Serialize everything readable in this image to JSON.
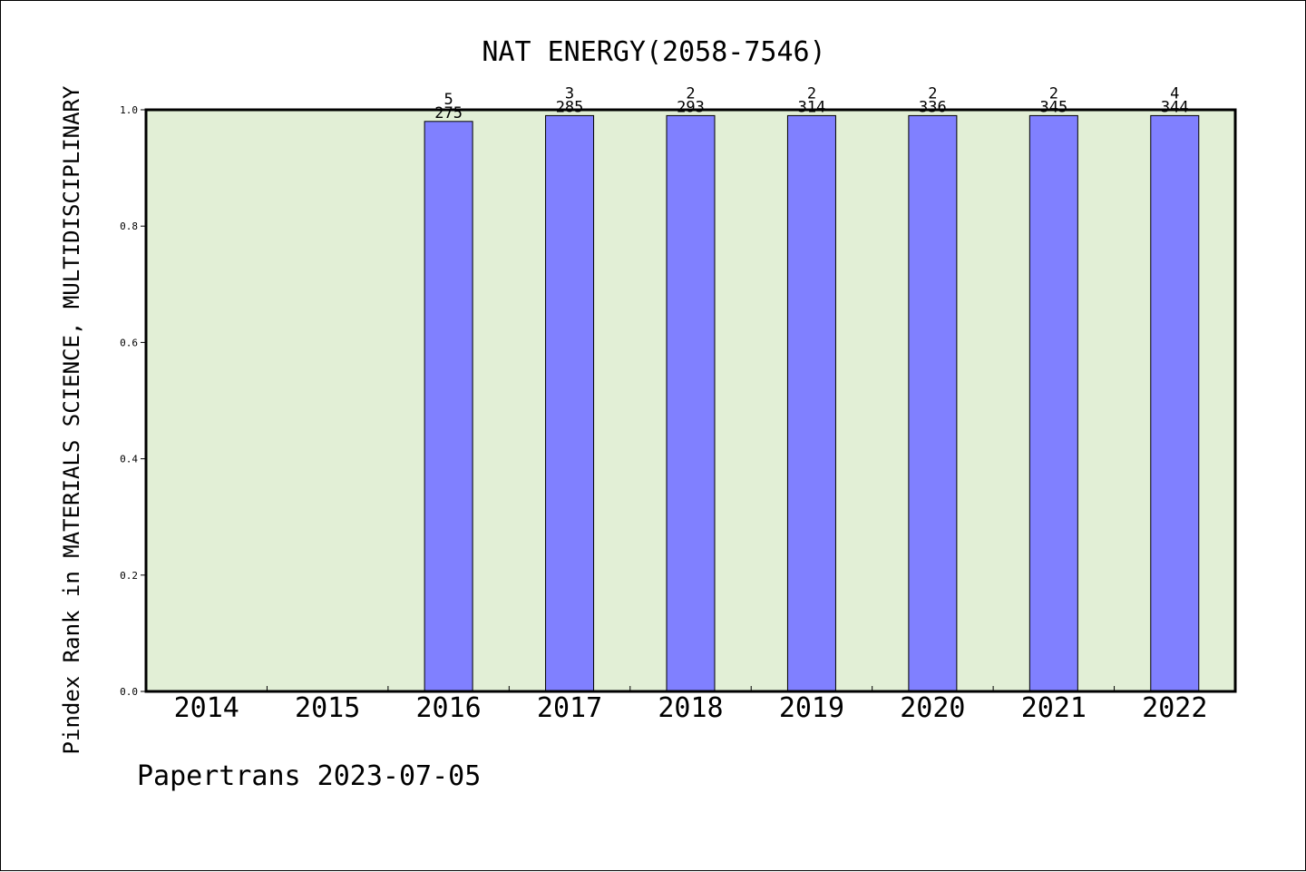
{
  "chart_data": {
    "type": "bar",
    "title": "NAT ENERGY(2058-7546)",
    "ylabel": "Pindex Rank in MATERIALS SCIENCE, MULTIDISCIPLINARY",
    "xlabel": "",
    "footer": "Papertrans 2023-07-05",
    "categories": [
      "2014",
      "2015",
      "2016",
      "2017",
      "2018",
      "2019",
      "2020",
      "2021",
      "2022"
    ],
    "values": [
      null,
      null,
      0.98,
      0.99,
      0.99,
      0.99,
      0.99,
      0.99,
      0.99
    ],
    "rank_labels": [
      "",
      "",
      "5",
      "3",
      "2",
      "2",
      "2",
      "2",
      "4"
    ],
    "total_labels": [
      "",
      "",
      "275",
      "285",
      "293",
      "314",
      "336",
      "345",
      "344"
    ],
    "yticks": [
      "0.0",
      "0.2",
      "0.4",
      "0.6",
      "0.8",
      "1.0"
    ],
    "ylim": [
      0,
      1
    ],
    "grid": false,
    "colors": {
      "plot_background": "#e2efd6",
      "bar": "#8080ff",
      "bar_edge": "#000000"
    }
  }
}
